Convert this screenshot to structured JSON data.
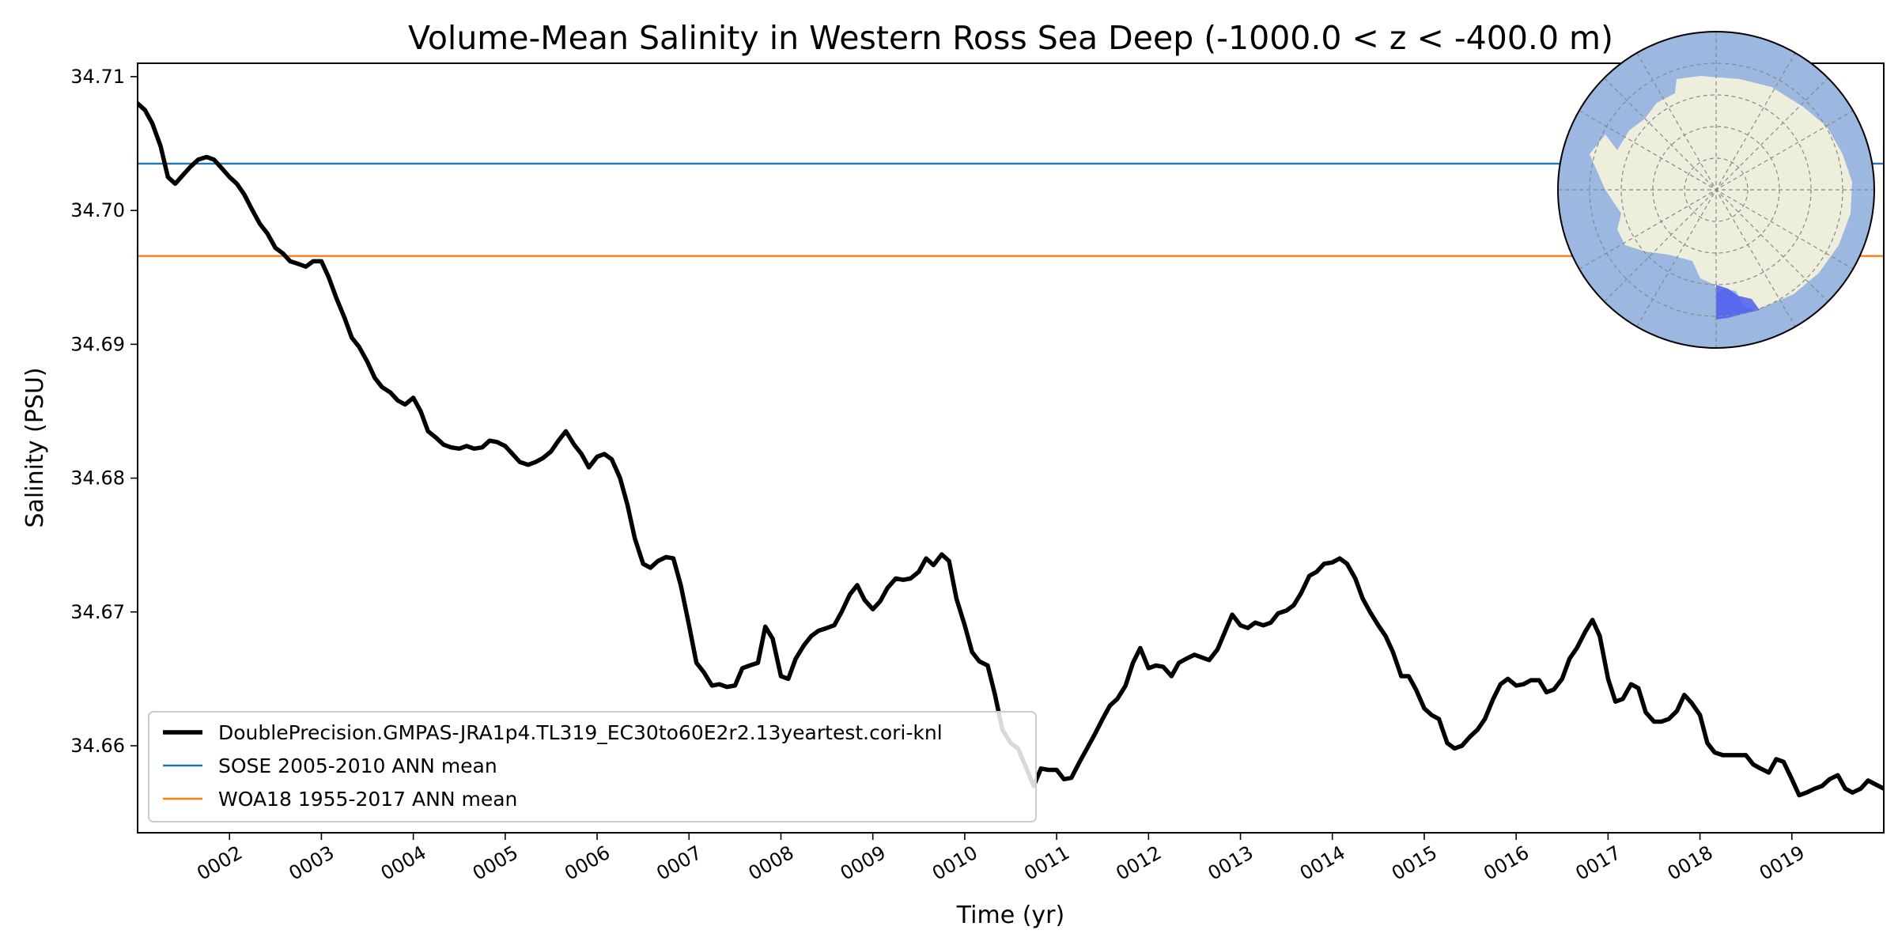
{
  "chart_data": {
    "type": "line",
    "title": "Volume-Mean Salinity in Western Ross Sea Deep (-1000.0 < z < -400.0 m)",
    "xlabel": "Time (yr)",
    "ylabel": "Salinity (PSU)",
    "xlim": [
      1.0,
      20.0
    ],
    "ylim": [
      34.6535,
      34.711
    ],
    "x_tick_values": [
      2,
      3,
      4,
      5,
      6,
      7,
      8,
      9,
      10,
      11,
      12,
      13,
      14,
      15,
      16,
      17,
      18,
      19
    ],
    "x_tick_labels": [
      "0002",
      "0003",
      "0004",
      "0005",
      "0006",
      "0007",
      "0008",
      "0009",
      "0010",
      "0011",
      "0012",
      "0013",
      "0014",
      "0015",
      "0016",
      "0017",
      "0018",
      "0019"
    ],
    "y_tick_values": [
      34.66,
      34.67,
      34.68,
      34.69,
      34.7,
      34.71
    ],
    "y_tick_labels": [
      "34.66",
      "34.67",
      "34.68",
      "34.69",
      "34.70",
      "34.71"
    ],
    "grid": false,
    "legend_position": "lower-left",
    "series": [
      {
        "name": "DoublePrecision.GMPAS-JRA1p4.TL319_EC30to60E2r2.13yeartest.cori-knl",
        "color": "#000000",
        "style": "thick-line",
        "points": [
          [
            1.0,
            34.708
          ],
          [
            1.08,
            34.7075
          ],
          [
            1.16,
            34.7065
          ],
          [
            1.25,
            34.7048
          ],
          [
            1.33,
            34.7025
          ],
          [
            1.41,
            34.702
          ],
          [
            1.5,
            34.7027
          ],
          [
            1.58,
            34.7033
          ],
          [
            1.66,
            34.7038
          ],
          [
            1.75,
            34.704
          ],
          [
            1.83,
            34.7038
          ],
          [
            1.91,
            34.7032
          ],
          [
            2.0,
            34.7025
          ],
          [
            2.08,
            34.702
          ],
          [
            2.16,
            34.7012
          ],
          [
            2.25,
            34.7
          ],
          [
            2.33,
            34.699
          ],
          [
            2.41,
            34.6983
          ],
          [
            2.5,
            34.6972
          ],
          [
            2.58,
            34.6968
          ],
          [
            2.66,
            34.6962
          ],
          [
            2.75,
            34.696
          ],
          [
            2.83,
            34.6958
          ],
          [
            2.91,
            34.6962
          ],
          [
            3.0,
            34.6962
          ],
          [
            3.08,
            34.695
          ],
          [
            3.16,
            34.6935
          ],
          [
            3.25,
            34.692
          ],
          [
            3.33,
            34.6905
          ],
          [
            3.41,
            34.6898
          ],
          [
            3.5,
            34.6887
          ],
          [
            3.58,
            34.6875
          ],
          [
            3.66,
            34.6868
          ],
          [
            3.75,
            34.6864
          ],
          [
            3.83,
            34.6858
          ],
          [
            3.91,
            34.6855
          ],
          [
            4.0,
            34.686
          ],
          [
            4.08,
            34.685
          ],
          [
            4.16,
            34.6835
          ],
          [
            4.25,
            34.683
          ],
          [
            4.33,
            34.6825
          ],
          [
            4.41,
            34.6823
          ],
          [
            4.5,
            34.6822
          ],
          [
            4.58,
            34.6824
          ],
          [
            4.66,
            34.6822
          ],
          [
            4.75,
            34.6823
          ],
          [
            4.83,
            34.6828
          ],
          [
            4.91,
            34.6827
          ],
          [
            5.0,
            34.6824
          ],
          [
            5.08,
            34.6818
          ],
          [
            5.16,
            34.6812
          ],
          [
            5.25,
            34.681
          ],
          [
            5.33,
            34.6812
          ],
          [
            5.41,
            34.6815
          ],
          [
            5.5,
            34.682
          ],
          [
            5.58,
            34.6828
          ],
          [
            5.66,
            34.6835
          ],
          [
            5.75,
            34.6825
          ],
          [
            5.83,
            34.6818
          ],
          [
            5.91,
            34.6808
          ],
          [
            6.0,
            34.6816
          ],
          [
            6.08,
            34.6818
          ],
          [
            6.16,
            34.6814
          ],
          [
            6.25,
            34.68
          ],
          [
            6.33,
            34.678
          ],
          [
            6.41,
            34.6755
          ],
          [
            6.5,
            34.6736
          ],
          [
            6.58,
            34.6733
          ],
          [
            6.66,
            34.6738
          ],
          [
            6.75,
            34.6741
          ],
          [
            6.83,
            34.674
          ],
          [
            6.91,
            34.672
          ],
          [
            7.0,
            34.669
          ],
          [
            7.08,
            34.6662
          ],
          [
            7.16,
            34.6655
          ],
          [
            7.25,
            34.6645
          ],
          [
            7.33,
            34.6646
          ],
          [
            7.41,
            34.6644
          ],
          [
            7.5,
            34.6645
          ],
          [
            7.58,
            34.6658
          ],
          [
            7.66,
            34.666
          ],
          [
            7.75,
            34.6662
          ],
          [
            7.83,
            34.6689
          ],
          [
            7.91,
            34.668
          ],
          [
            8.0,
            34.6652
          ],
          [
            8.08,
            34.665
          ],
          [
            8.16,
            34.6665
          ],
          [
            8.25,
            34.6675
          ],
          [
            8.33,
            34.6682
          ],
          [
            8.41,
            34.6686
          ],
          [
            8.5,
            34.6688
          ],
          [
            8.58,
            34.669
          ],
          [
            8.66,
            34.67
          ],
          [
            8.75,
            34.6713
          ],
          [
            8.83,
            34.672
          ],
          [
            8.91,
            34.6709
          ],
          [
            9.0,
            34.6702
          ],
          [
            9.08,
            34.6708
          ],
          [
            9.16,
            34.6718
          ],
          [
            9.25,
            34.6725
          ],
          [
            9.33,
            34.6724
          ],
          [
            9.41,
            34.6725
          ],
          [
            9.5,
            34.673
          ],
          [
            9.58,
            34.674
          ],
          [
            9.66,
            34.6735
          ],
          [
            9.75,
            34.6743
          ],
          [
            9.83,
            34.6738
          ],
          [
            9.91,
            34.671
          ],
          [
            10.0,
            34.669
          ],
          [
            10.08,
            34.667
          ],
          [
            10.16,
            34.6663
          ],
          [
            10.25,
            34.666
          ],
          [
            10.33,
            34.6638
          ],
          [
            10.41,
            34.6612
          ],
          [
            10.5,
            34.6602
          ],
          [
            10.58,
            34.6598
          ],
          [
            10.66,
            34.6585
          ],
          [
            10.75,
            34.657
          ],
          [
            10.83,
            34.6583
          ],
          [
            10.91,
            34.6582
          ],
          [
            11.0,
            34.6582
          ],
          [
            11.08,
            34.6575
          ],
          [
            11.16,
            34.6576
          ],
          [
            11.25,
            34.6588
          ],
          [
            11.33,
            34.6598
          ],
          [
            11.41,
            34.6608
          ],
          [
            11.5,
            34.662
          ],
          [
            11.58,
            34.663
          ],
          [
            11.66,
            34.6635
          ],
          [
            11.75,
            34.6645
          ],
          [
            11.83,
            34.6662
          ],
          [
            11.91,
            34.6673
          ],
          [
            12.0,
            34.6658
          ],
          [
            12.08,
            34.666
          ],
          [
            12.16,
            34.6659
          ],
          [
            12.25,
            34.6652
          ],
          [
            12.33,
            34.6662
          ],
          [
            12.41,
            34.6665
          ],
          [
            12.5,
            34.6668
          ],
          [
            12.58,
            34.6666
          ],
          [
            12.66,
            34.6664
          ],
          [
            12.75,
            34.6672
          ],
          [
            12.83,
            34.6685
          ],
          [
            12.91,
            34.6698
          ],
          [
            13.0,
            34.669
          ],
          [
            13.08,
            34.6688
          ],
          [
            13.16,
            34.6692
          ],
          [
            13.25,
            34.669
          ],
          [
            13.33,
            34.6692
          ],
          [
            13.41,
            34.6699
          ],
          [
            13.5,
            34.6701
          ],
          [
            13.58,
            34.6705
          ],
          [
            13.66,
            34.6714
          ],
          [
            13.75,
            34.6727
          ],
          [
            13.83,
            34.673
          ],
          [
            13.91,
            34.6736
          ],
          [
            14.0,
            34.6737
          ],
          [
            14.08,
            34.674
          ],
          [
            14.16,
            34.6736
          ],
          [
            14.25,
            34.6725
          ],
          [
            14.33,
            34.671
          ],
          [
            14.41,
            34.67
          ],
          [
            14.5,
            34.669
          ],
          [
            14.58,
            34.6682
          ],
          [
            14.66,
            34.667
          ],
          [
            14.75,
            34.6652
          ],
          [
            14.83,
            34.6652
          ],
          [
            14.91,
            34.6642
          ],
          [
            15.0,
            34.6628
          ],
          [
            15.08,
            34.6623
          ],
          [
            15.16,
            34.662
          ],
          [
            15.25,
            34.6602
          ],
          [
            15.33,
            34.6598
          ],
          [
            15.41,
            34.66
          ],
          [
            15.5,
            34.6607
          ],
          [
            15.58,
            34.6612
          ],
          [
            15.66,
            34.662
          ],
          [
            15.75,
            34.6635
          ],
          [
            15.83,
            34.6646
          ],
          [
            15.91,
            34.665
          ],
          [
            16.0,
            34.6645
          ],
          [
            16.08,
            34.6646
          ],
          [
            16.16,
            34.6649
          ],
          [
            16.25,
            34.6649
          ],
          [
            16.33,
            34.664
          ],
          [
            16.41,
            34.6642
          ],
          [
            16.5,
            34.665
          ],
          [
            16.58,
            34.6665
          ],
          [
            16.66,
            34.6673
          ],
          [
            16.75,
            34.6685
          ],
          [
            16.83,
            34.6694
          ],
          [
            16.91,
            34.6682
          ],
          [
            17.0,
            34.665
          ],
          [
            17.08,
            34.6633
          ],
          [
            17.16,
            34.6635
          ],
          [
            17.25,
            34.6646
          ],
          [
            17.33,
            34.6643
          ],
          [
            17.41,
            34.6625
          ],
          [
            17.5,
            34.6618
          ],
          [
            17.58,
            34.6618
          ],
          [
            17.66,
            34.662
          ],
          [
            17.75,
            34.6626
          ],
          [
            17.83,
            34.6638
          ],
          [
            17.91,
            34.6632
          ],
          [
            18.0,
            34.6623
          ],
          [
            18.08,
            34.6602
          ],
          [
            18.16,
            34.6595
          ],
          [
            18.25,
            34.6593
          ],
          [
            18.33,
            34.6593
          ],
          [
            18.41,
            34.6593
          ],
          [
            18.5,
            34.6593
          ],
          [
            18.58,
            34.6586
          ],
          [
            18.66,
            34.6583
          ],
          [
            18.75,
            34.658
          ],
          [
            18.83,
            34.659
          ],
          [
            18.91,
            34.6588
          ],
          [
            19.0,
            34.6575
          ],
          [
            19.08,
            34.6563
          ],
          [
            19.16,
            34.6565
          ],
          [
            19.25,
            34.6568
          ],
          [
            19.33,
            34.657
          ],
          [
            19.41,
            34.6575
          ],
          [
            19.5,
            34.6578
          ],
          [
            19.58,
            34.6568
          ],
          [
            19.66,
            34.6565
          ],
          [
            19.75,
            34.6568
          ],
          [
            19.83,
            34.6574
          ],
          [
            20.0,
            34.6568
          ]
        ]
      },
      {
        "name": "SOSE 2005-2010 ANN mean",
        "color": "#1f77b4",
        "style": "hline",
        "value": 34.7035
      },
      {
        "name": "WOA18 1955-2017 ANN mean",
        "color": "#ff7f0e",
        "style": "hline",
        "value": 34.6966
      }
    ],
    "inset": {
      "description": "south-polar map of Antarctica with Western Ross Sea region highlighted",
      "ocean_color": "#9db8e0",
      "land_color": "#eeeedd",
      "region_color": "#4b5cf0"
    }
  }
}
